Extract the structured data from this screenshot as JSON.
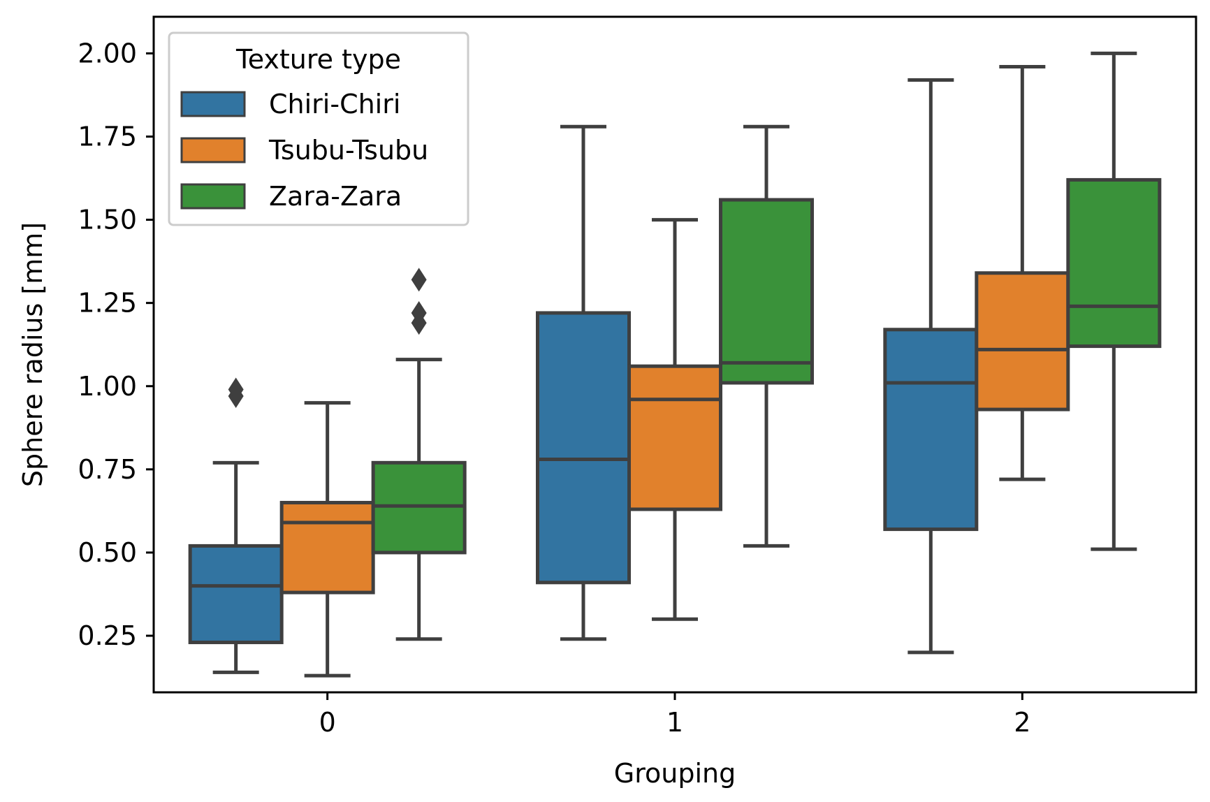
{
  "chart_data": {
    "type": "box",
    "xlabel": "Grouping",
    "ylabel": "Sphere radius [mm]",
    "categories": [
      "0",
      "1",
      "2"
    ],
    "ylim": [
      0.08,
      2.11
    ],
    "yticks": [
      0.25,
      0.5,
      0.75,
      1.0,
      1.25,
      1.5,
      1.75,
      2.0
    ],
    "ytick_labels": [
      "0.25",
      "0.50",
      "0.75",
      "1.00",
      "1.25",
      "1.50",
      "1.75",
      "2.00"
    ],
    "grid": false,
    "legend": {
      "title": "Texture type",
      "placement": "top-left",
      "items": [
        "Chiri-Chiri",
        "Tsubu-Tsubu",
        "Zara-Zara"
      ]
    },
    "colors": {
      "Chiri-Chiri": "#3274a1",
      "Tsubu-Tsubu": "#e1812c",
      "Zara-Zara": "#3a923a",
      "outline": "#3f3f3f"
    },
    "series": [
      {
        "name": "Chiri-Chiri",
        "boxes": [
          {
            "category": "0",
            "whisker_low": 0.14,
            "q1": 0.23,
            "median": 0.4,
            "q3": 0.52,
            "whisker_high": 0.77,
            "outliers": [
              0.97,
              0.99
            ]
          },
          {
            "category": "1",
            "whisker_low": 0.24,
            "q1": 0.41,
            "median": 0.78,
            "q3": 1.22,
            "whisker_high": 1.78,
            "outliers": []
          },
          {
            "category": "2",
            "whisker_low": 0.2,
            "q1": 0.57,
            "median": 1.01,
            "q3": 1.17,
            "whisker_high": 1.92,
            "outliers": []
          }
        ]
      },
      {
        "name": "Tsubu-Tsubu",
        "boxes": [
          {
            "category": "0",
            "whisker_low": 0.13,
            "q1": 0.38,
            "median": 0.59,
            "q3": 0.65,
            "whisker_high": 0.95,
            "outliers": []
          },
          {
            "category": "1",
            "whisker_low": 0.3,
            "q1": 0.63,
            "median": 0.96,
            "q3": 1.06,
            "whisker_high": 1.5,
            "outliers": []
          },
          {
            "category": "2",
            "whisker_low": 0.72,
            "q1": 0.93,
            "median": 1.11,
            "q3": 1.34,
            "whisker_high": 1.96,
            "outliers": []
          }
        ]
      },
      {
        "name": "Zara-Zara",
        "boxes": [
          {
            "category": "0",
            "whisker_low": 0.24,
            "q1": 0.5,
            "median": 0.64,
            "q3": 0.77,
            "whisker_high": 1.08,
            "outliers": [
              1.19,
              1.22,
              1.32
            ]
          },
          {
            "category": "1",
            "whisker_low": 0.52,
            "q1": 1.01,
            "median": 1.07,
            "q3": 1.56,
            "whisker_high": 1.78,
            "outliers": []
          },
          {
            "category": "2",
            "whisker_low": 0.51,
            "q1": 1.12,
            "median": 1.24,
            "q3": 1.62,
            "whisker_high": 2.0,
            "outliers": []
          }
        ]
      }
    ]
  }
}
